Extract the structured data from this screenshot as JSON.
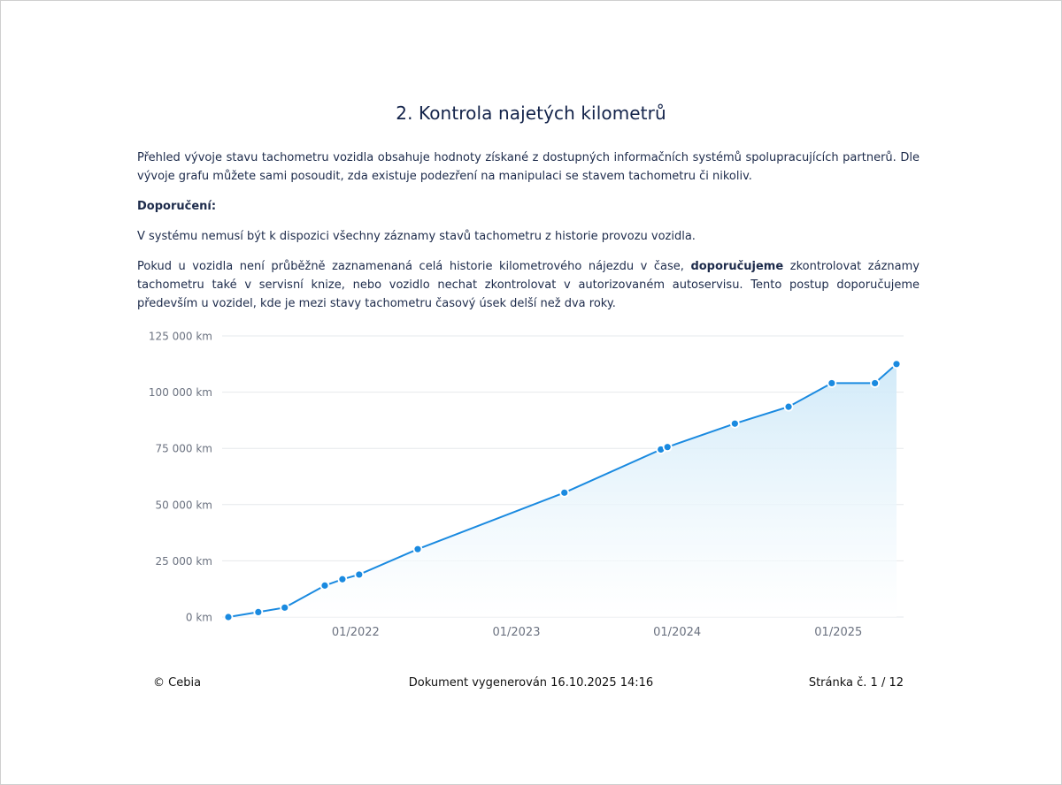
{
  "title": "2. Kontrola najetých kilometrů",
  "intro": "Přehled vývoje stavu tachometru vozidla obsahuje hodnoty získané z dostupných informačních systémů spolupracujících partnerů. Dle vývoje grafu můžete sami posoudit, zda existuje podezření na manipulaci se stavem tachometru či nikoliv.",
  "recommendation_heading": "Doporučení:",
  "note": "V systému nemusí být k dispozici všechny záznamy stavů tachometru z historie provozu vozidla.",
  "advice": {
    "before": "Pokud u vozidla není průběžně zaznamenaná celá historie kilometrového nájezdu v čase, ",
    "bold": "doporučujeme",
    "after": " zkontrolovat záznamy tachometru také v servisní knize, nebo vozidlo nechat zkontrolovat v autorizovaném autoservisu. Tento postup doporučujeme především u vozidel, kde je mezi stavy tachometru časový úsek delší než dva roky."
  },
  "chart_data": {
    "type": "area",
    "y_ticks": [
      "0 km",
      "25 000 km",
      "50 000 km",
      "75 000 km",
      "100 000 km",
      "125 000 km"
    ],
    "x_ticks": [
      {
        "label": "01/2022",
        "date": "2022-01-01"
      },
      {
        "label": "01/2023",
        "date": "2023-01-01"
      },
      {
        "label": "01/2024",
        "date": "2024-01-01"
      },
      {
        "label": "01/2025",
        "date": "2025-01-01"
      }
    ],
    "ylim": [
      0,
      125000
    ],
    "grid": true,
    "points": [
      {
        "date": "2021-03-18",
        "km": 0
      },
      {
        "date": "2021-05-25",
        "km": 2200
      },
      {
        "date": "2021-07-24",
        "km": 4200
      },
      {
        "date": "2021-10-23",
        "km": 14000
      },
      {
        "date": "2021-12-02",
        "km": 16800
      },
      {
        "date": "2022-01-09",
        "km": 18900
      },
      {
        "date": "2022-05-22",
        "km": 30200
      },
      {
        "date": "2023-04-20",
        "km": 55300
      },
      {
        "date": "2023-11-25",
        "km": 74500
      },
      {
        "date": "2023-12-10",
        "km": 75600
      },
      {
        "date": "2024-05-11",
        "km": 86000
      },
      {
        "date": "2024-09-10",
        "km": 93500
      },
      {
        "date": "2024-12-17",
        "km": 104000
      },
      {
        "date": "2025-03-25",
        "km": 104000
      },
      {
        "date": "2025-05-13",
        "km": 112500
      }
    ],
    "line_color": "#1a8ae0",
    "fill_color": "#d9eefa"
  },
  "footer": {
    "copyright": "© Cebia",
    "generated": "Dokument vygenerován 16.10.2025 14:16",
    "page": "Stránka č. 1 / 12"
  }
}
